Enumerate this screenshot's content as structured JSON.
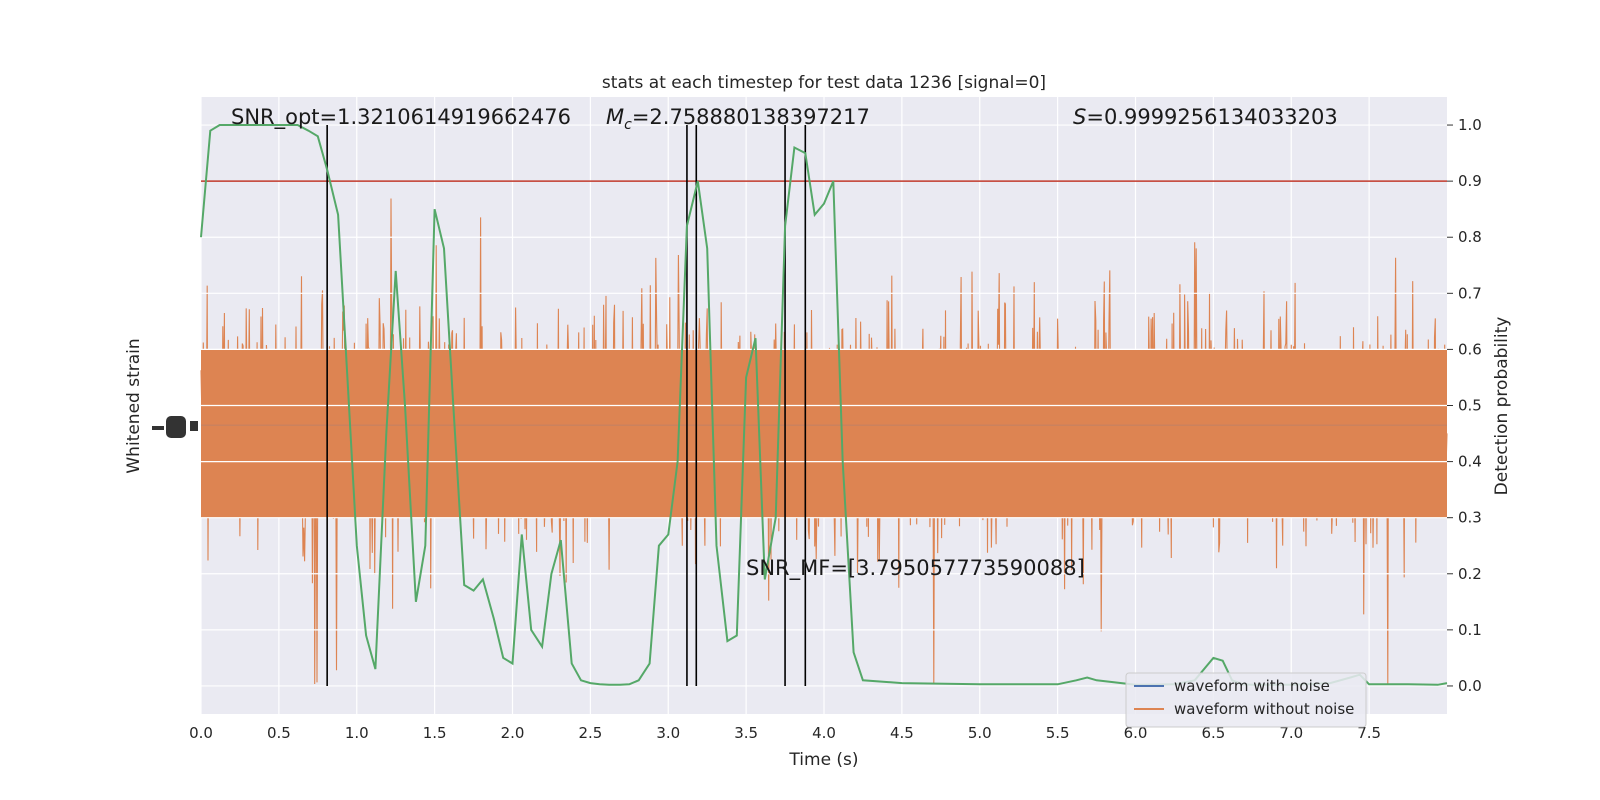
{
  "chart_data": {
    "type": "line",
    "title": "stats at each timestep for test data 1236 [signal=0]",
    "xlabel": "Time (s)",
    "ylabel_left": "Whitened strain",
    "ylabel_right": "Detection probability",
    "xlim": [
      0.0,
      8.0
    ],
    "ylim_right": [
      -0.05,
      1.05
    ],
    "x_ticks": [
      "0.0",
      "0.5",
      "1.0",
      "1.5",
      "2.0",
      "2.5",
      "3.0",
      "3.5",
      "4.0",
      "4.5",
      "5.0",
      "5.5",
      "6.0",
      "6.5",
      "7.0",
      "7.5"
    ],
    "x_tick_values": [
      0.0,
      0.5,
      1.0,
      1.5,
      2.0,
      2.5,
      3.0,
      3.5,
      4.0,
      4.5,
      5.0,
      5.5,
      6.0,
      6.5,
      7.0,
      7.5
    ],
    "y_right_ticks": [
      "0.0",
      "0.1",
      "0.2",
      "0.3",
      "0.4",
      "0.5",
      "0.6",
      "0.7",
      "0.8",
      "0.9",
      "1.0"
    ],
    "y_right_tick_values": [
      0.0,
      0.1,
      0.2,
      0.3,
      0.4,
      0.5,
      0.6,
      0.7,
      0.8,
      0.9,
      1.0
    ],
    "grid": true,
    "legend_position": "lower-right",
    "annotations": {
      "snr_opt": "SNR_opt=1.3210614919662476",
      "mc_symbol": "M",
      "mc_sub": "c",
      "mc_value": "=2.758880138397217",
      "s_symbol": "S",
      "s_value": "=0.9999256134033203",
      "snr_mf": "SNR_MF=[3.795057773590088]"
    },
    "threshold": {
      "y": 0.9,
      "color": "#c0392b"
    },
    "vertical_lines": [
      0.81,
      3.12,
      3.18,
      3.75,
      3.88
    ],
    "series": [
      {
        "name": "waveform with noise",
        "color": "#4c72b0"
      },
      {
        "name": "waveform without noise",
        "color": "#dd8452",
        "seed": 1236
      },
      {
        "color": "#55a868",
        "x": [
          0.0,
          0.06,
          0.12,
          0.19,
          0.25,
          0.31,
          0.38,
          0.44,
          0.5,
          0.56,
          0.62,
          0.69,
          0.75,
          0.81,
          0.88,
          0.94,
          1.0,
          1.06,
          1.12,
          1.19,
          1.25,
          1.31,
          1.38,
          1.44,
          1.5,
          1.56,
          1.62,
          1.69,
          1.75,
          1.81,
          1.88,
          1.94,
          2.0,
          2.06,
          2.12,
          2.19,
          2.25,
          2.31,
          2.38,
          2.44,
          2.5,
          2.56,
          2.62,
          2.69,
          2.75,
          2.81,
          2.88,
          2.94,
          3.0,
          3.06,
          3.12,
          3.19,
          3.25,
          3.31,
          3.38,
          3.44,
          3.5,
          3.56,
          3.62,
          3.69,
          3.75,
          3.81,
          3.88,
          3.94,
          4.0,
          4.06,
          4.12,
          4.19,
          4.25,
          4.5,
          5.0,
          5.5,
          5.62,
          5.69,
          5.75,
          6.0,
          6.25,
          6.38,
          6.5,
          6.56,
          6.62,
          6.69,
          6.75,
          7.0,
          7.25,
          7.38,
          7.44,
          7.5,
          7.75,
          7.94,
          8.0
        ],
        "y": [
          0.8,
          0.99,
          1.0,
          1.0,
          1.0,
          1.0,
          1.0,
          1.0,
          1.0,
          1.0,
          1.0,
          0.99,
          0.98,
          0.92,
          0.84,
          0.55,
          0.25,
          0.09,
          0.03,
          0.45,
          0.74,
          0.5,
          0.15,
          0.25,
          0.85,
          0.78,
          0.5,
          0.18,
          0.17,
          0.19,
          0.12,
          0.05,
          0.04,
          0.27,
          0.1,
          0.07,
          0.2,
          0.26,
          0.04,
          0.01,
          0.005,
          0.003,
          0.002,
          0.002,
          0.003,
          0.01,
          0.04,
          0.25,
          0.27,
          0.4,
          0.82,
          0.9,
          0.78,
          0.25,
          0.08,
          0.09,
          0.55,
          0.62,
          0.19,
          0.3,
          0.82,
          0.96,
          0.95,
          0.84,
          0.86,
          0.9,
          0.4,
          0.06,
          0.01,
          0.005,
          0.003,
          0.003,
          0.01,
          0.015,
          0.01,
          0.002,
          0.003,
          0.01,
          0.05,
          0.045,
          0.01,
          0.003,
          0.002,
          0.002,
          0.005,
          0.015,
          0.02,
          0.003,
          0.003,
          0.002,
          0.005
        ]
      }
    ]
  }
}
